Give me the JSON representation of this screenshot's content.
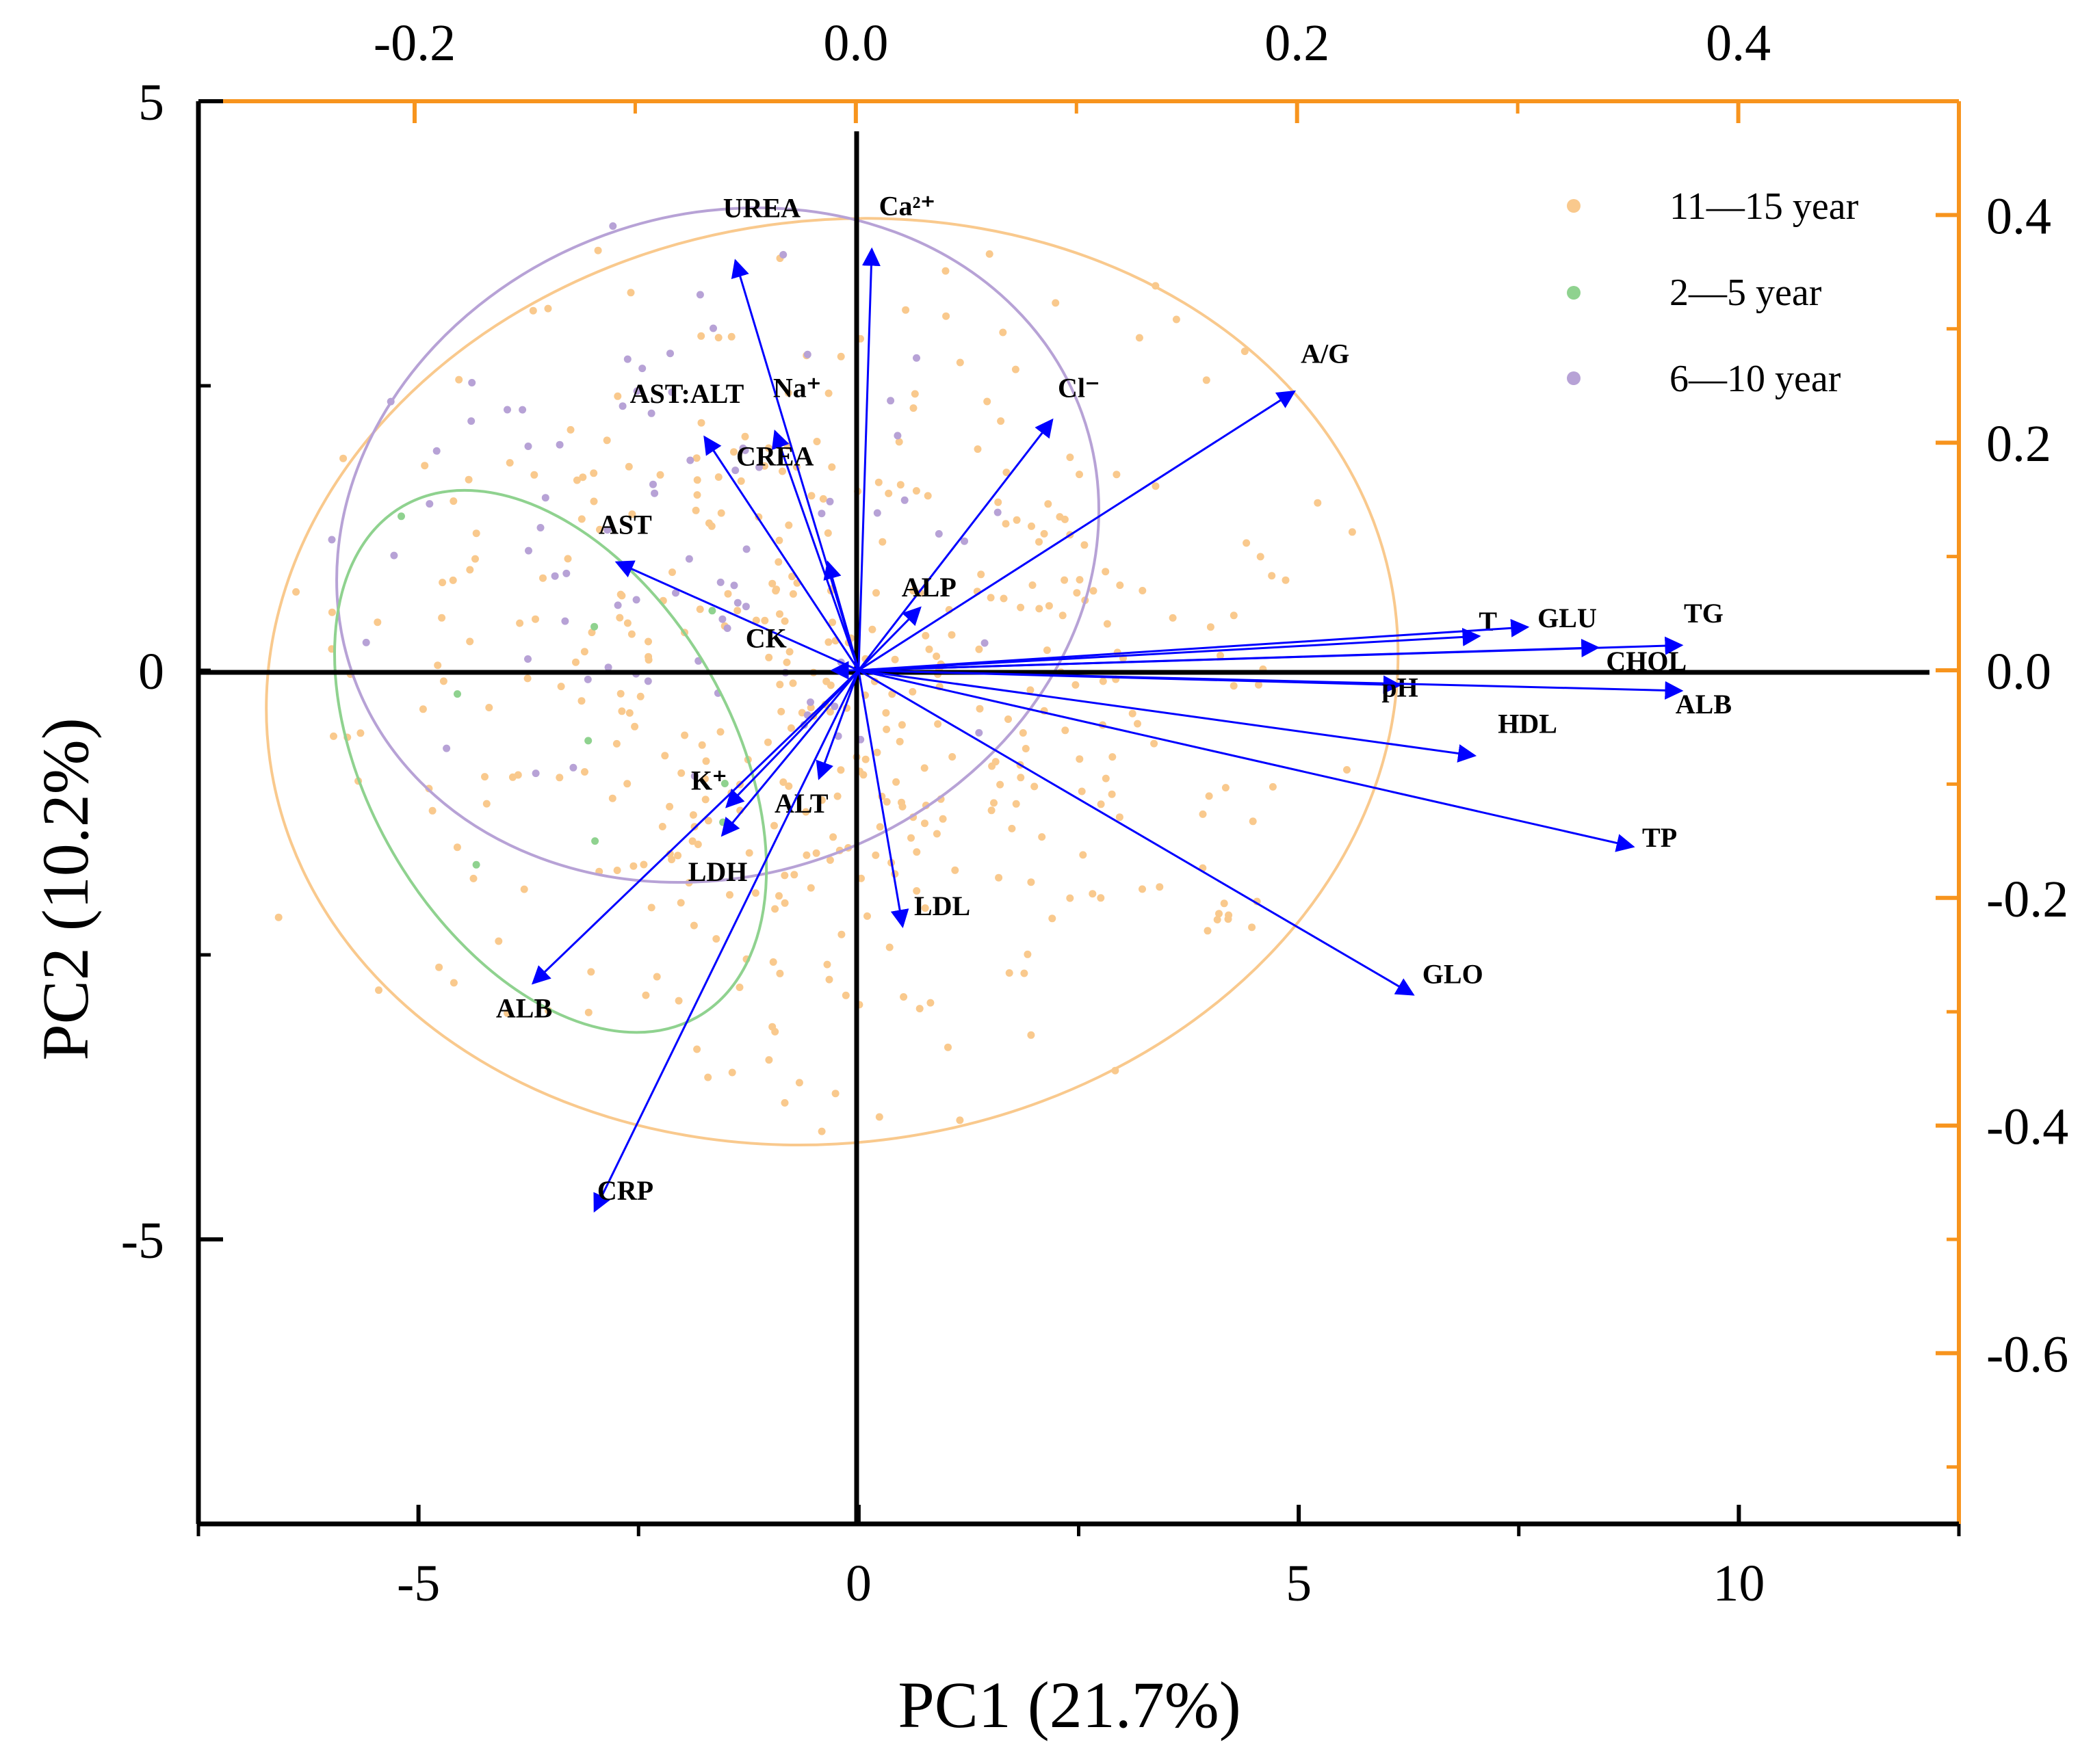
{
  "chart_data": {
    "type": "scatter",
    "subtype": "pca-biplot",
    "xlabel": "PC1 (21.7%)",
    "ylabel": "PC2 (10.2%)",
    "bottom_axis": {
      "range": [
        -7.5,
        12.5
      ],
      "ticks": [
        -5,
        0,
        5,
        10
      ],
      "tick_labels": [
        "-5",
        "0",
        "5",
        "10"
      ]
    },
    "left_axis": {
      "range": [
        -7.5,
        5
      ],
      "ticks": [
        5,
        -5
      ],
      "tick_labels": [
        "5",
        "-5"
      ]
    },
    "top_axis": {
      "range": [
        -0.298,
        0.5
      ],
      "ticks": [
        -0.2,
        0.0,
        0.2,
        0.4
      ],
      "tick_labels": [
        "-0.2",
        "0.0",
        "0.2",
        "0.4"
      ]
    },
    "right_axis": {
      "range": [
        -0.75,
        0.5
      ],
      "ticks": [
        0.4,
        0.2,
        0.0,
        -0.2,
        -0.4,
        -0.6
      ],
      "tick_labels": [
        "0.4",
        "0.2",
        "0.0",
        "-0.2",
        "-0.4",
        "-0.6"
      ]
    },
    "colors": {
      "11-15": "#f9c98d",
      "2-5": "#8fd28f",
      "6-10": "#b7a2d6",
      "arrow": "#0000ff",
      "axis_accent": "#f7941d"
    },
    "legend": [
      {
        "label": "11—15 year",
        "group": "11-15"
      },
      {
        "label": "2—5 year",
        "group": "2-5"
      },
      {
        "label": "6—10 year",
        "group": "6-10"
      }
    ],
    "loadings": [
      {
        "name": "UREA",
        "x": -1.4,
        "y": 3.6,
        "label_dx": 0.3,
        "label_dy": 0.38
      },
      {
        "name": "Ca²⁺",
        "x": 0.15,
        "y": 3.7,
        "label_dx": 0.4,
        "label_dy": 0.3
      },
      {
        "name": "Na⁺",
        "x": -0.95,
        "y": 2.1,
        "label_dx": 0.25,
        "label_dy": 0.3
      },
      {
        "name": "AST:ALT",
        "x": -1.75,
        "y": 2.05,
        "label_dx": -0.2,
        "label_dy": 0.3
      },
      {
        "name": "Cl⁻",
        "x": 2.2,
        "y": 2.2,
        "label_dx": 0.3,
        "label_dy": 0.2
      },
      {
        "name": "A/G",
        "x": 4.95,
        "y": 2.45,
        "label_dx": 0.35,
        "label_dy": 0.25
      },
      {
        "name": "AST",
        "x": -2.75,
        "y": 0.95,
        "label_dx": 0.1,
        "label_dy": 0.25
      },
      {
        "name": "CREA",
        "x": -0.35,
        "y": 0.95,
        "label_dx": -0.6,
        "label_dy": 0.85
      },
      {
        "name": "ALP",
        "x": 0.7,
        "y": 0.55,
        "label_dx": 0.1,
        "label_dy": 0.1
      },
      {
        "name": "CK",
        "x": -0.3,
        "y": 0.0,
        "label_dx": -0.75,
        "label_dy": 0.2
      },
      {
        "name": "T",
        "x": 7.05,
        "y": 0.3,
        "label_dx": 0.1,
        "label_dy": 0.05
      },
      {
        "name": "GLU",
        "x": 7.6,
        "y": 0.38,
        "label_dx": 0.45,
        "label_dy": 0.0
      },
      {
        "name": "TG",
        "x": 9.35,
        "y": 0.22,
        "label_dx": 0.25,
        "label_dy": 0.2
      },
      {
        "name": "CHOL",
        "x": 8.4,
        "y": 0.2,
        "label_dx": 0.55,
        "label_dy": -0.2
      },
      {
        "name": "pH",
        "x": 6.15,
        "y": -0.13,
        "label_dx": 0.0,
        "label_dy": -0.1
      },
      {
        "name": "ALB",
        "x": 9.35,
        "y": -0.18,
        "label_dx": 0.25,
        "label_dy": -0.2
      },
      {
        "name": "HDL",
        "x": 7.0,
        "y": -0.75,
        "label_dx": 0.6,
        "label_dy": 0.2
      },
      {
        "name": "TP",
        "x": 8.8,
        "y": -1.55,
        "label_dx": 0.3,
        "label_dy": 0.0
      },
      {
        "name": "GLO",
        "x": 6.3,
        "y": -2.85,
        "label_dx": 0.45,
        "label_dy": 0.1
      },
      {
        "name": "LDL",
        "x": 0.5,
        "y": -2.25,
        "label_dx": 0.45,
        "label_dy": 0.1
      },
      {
        "name": "K⁺",
        "x": -1.5,
        "y": -1.2,
        "label_dx": -0.2,
        "label_dy": 0.15
      },
      {
        "name": "ALT",
        "x": -0.45,
        "y": -0.95,
        "label_dx": -0.2,
        "label_dy": -0.3
      },
      {
        "name": "LDH",
        "x": -1.55,
        "y": -1.45,
        "label_dx": -0.05,
        "label_dy": -0.4
      },
      {
        "name": "ALB",
        "x": -3.7,
        "y": -2.75,
        "label_dx": -0.1,
        "label_dy": -0.3
      },
      {
        "name": "CRP",
        "x": -3.0,
        "y": -4.75,
        "label_dx": 0.35,
        "label_dy": 0.1
      }
    ],
    "ellipses": [
      {
        "group": "11-15",
        "cx": -0.3,
        "cy": -0.1,
        "rx": 6.45,
        "ry": 4.05,
        "angle": 8
      },
      {
        "group": "6-10",
        "cx": -1.6,
        "cy": 1.1,
        "rx": 4.4,
        "ry": 2.9,
        "angle": 20
      },
      {
        "group": "2-5",
        "cx": -3.5,
        "cy": -0.8,
        "rx": 3.35,
        "ry": 1.6,
        "angle": -60
      }
    ],
    "scatter_counts": {
      "11-15": 440,
      "6-10": 80,
      "2-5": 9
    }
  }
}
